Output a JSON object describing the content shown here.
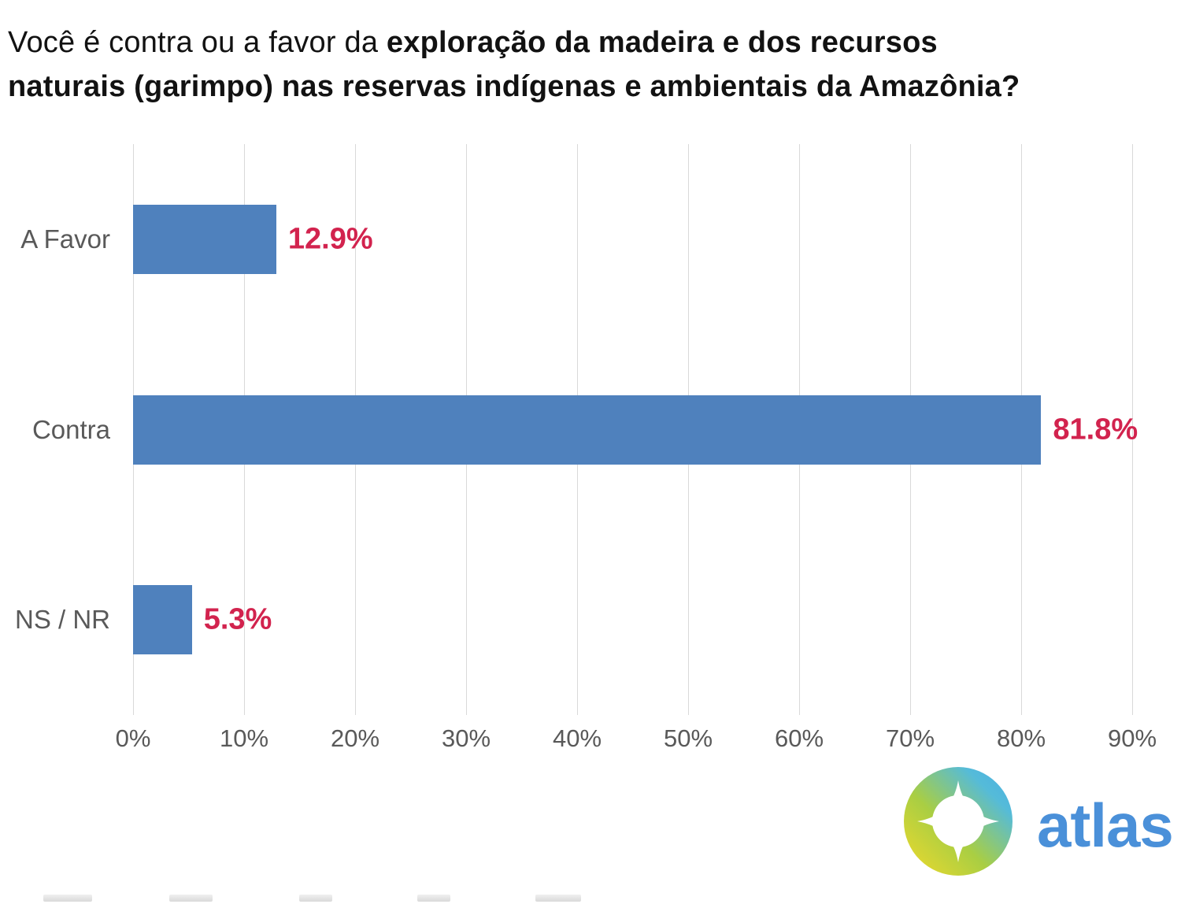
{
  "title": {
    "line1_regular": "Você é contra ou a favor da ",
    "line1_bold": "exploração da madeira e dos recursos",
    "line2_bold": "naturais (garimpo) nas reservas indígenas e ambientais da Amazônia?"
  },
  "chart_data": {
    "type": "bar",
    "orientation": "horizontal",
    "title": "Você é contra ou a favor da exploração da madeira e dos recursos naturais (garimpo) nas reservas indígenas e ambientais da Amazônia?",
    "categories": [
      "A Favor",
      "Contra",
      "NS / NR"
    ],
    "values": [
      12.9,
      81.8,
      5.3
    ],
    "value_labels": [
      "12.9%",
      "81.8%",
      "5.3%"
    ],
    "x_ticks": [
      "0%",
      "10%",
      "20%",
      "30%",
      "40%",
      "50%",
      "60%",
      "70%",
      "80%",
      "90%"
    ],
    "x_tick_values": [
      0,
      10,
      20,
      30,
      40,
      50,
      60,
      70,
      80,
      90
    ],
    "xlim": [
      0,
      90
    ],
    "grid": "vertical-only",
    "legend": "none",
    "colors": {
      "bar": "#4f81bd",
      "value_label": "#d2234e",
      "category_label": "#595959",
      "tick_label": "#595959",
      "gridline": "#d9d9d9",
      "title": "#121212"
    }
  },
  "logo": {
    "text": "atlas",
    "text_color": "#4a90d9",
    "icon": "compass-gradient-icon",
    "icon_gradient": [
      "#f2da2b",
      "#a9ce43",
      "#55bbd9",
      "#49aee4"
    ]
  }
}
